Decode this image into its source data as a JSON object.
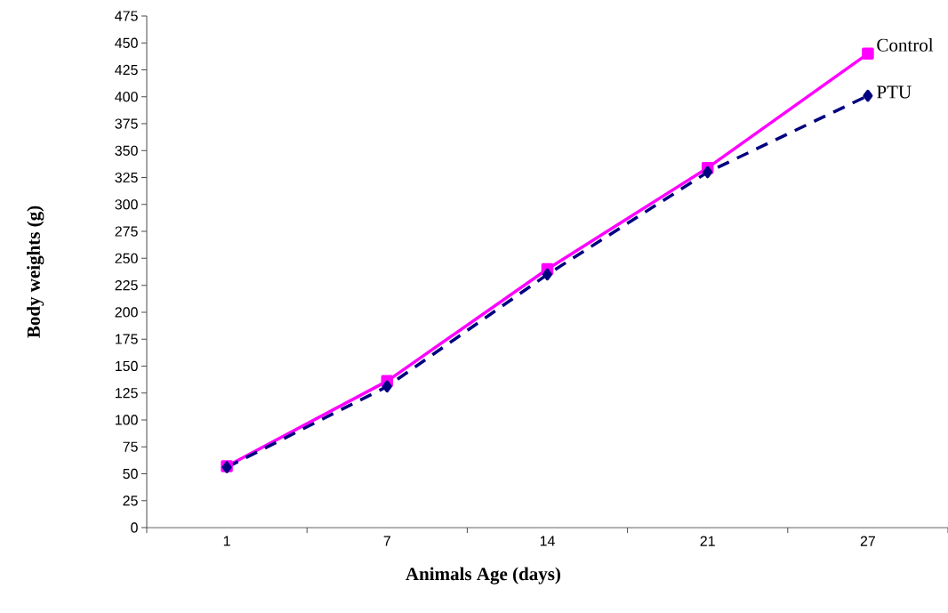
{
  "chart_data": {
    "type": "line",
    "xlabel": "Animals  Age (days)",
    "ylabel": "Body weights (g)",
    "categories": [
      "1",
      "7",
      "14",
      "21",
      "27"
    ],
    "series": [
      {
        "name": "Control",
        "color": "#ff00ff",
        "marker": "square",
        "line_style": "solid",
        "values": [
          57,
          136,
          240,
          334,
          440
        ]
      },
      {
        "name": "PTU",
        "color": "#000080",
        "marker": "diamond",
        "line_style": "dashed",
        "values": [
          56,
          131,
          235,
          330,
          401
        ]
      }
    ],
    "ylim": [
      0,
      475
    ],
    "yticks": [
      0,
      25,
      50,
      75,
      100,
      125,
      150,
      175,
      200,
      225,
      250,
      275,
      300,
      325,
      350,
      375,
      400,
      425,
      450,
      475
    ],
    "grid": false,
    "legend": false
  }
}
